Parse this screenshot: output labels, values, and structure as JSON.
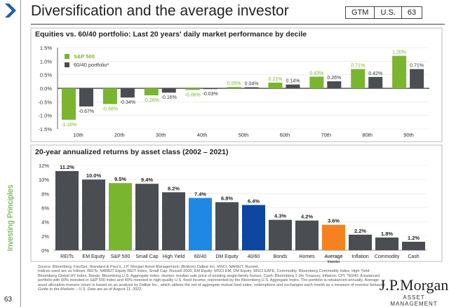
{
  "header": {
    "title": "Diversification and the average investor",
    "tags": [
      "GTM",
      "U.S.",
      "63"
    ]
  },
  "sidebar": {
    "label": "Investing Principles",
    "page": "63",
    "accent": "#1f5fa8"
  },
  "chart_data": [
    {
      "type": "bar",
      "title": "Equities vs. 60/40 portfolio: Last 20 years' daily market performance by decile",
      "categories": [
        "10th",
        "20th",
        "30th",
        "40th",
        "50th",
        "60th",
        "70th",
        "80th",
        "90th"
      ],
      "series": [
        {
          "name": "S&P 500",
          "color": "#7ab52f",
          "values": [
            -1.16,
            -0.58,
            -0.26,
            -0.06,
            0.05,
            0.21,
            0.43,
            0.71,
            1.2
          ],
          "labels": [
            "-1.16%",
            "-0.58%",
            "-0.26%",
            "-0.06%",
            "0.05%",
            "0.21%",
            "0.43%",
            "0.71%",
            "1.20%"
          ]
        },
        {
          "name": "60/40 portfolio*",
          "color": "#4a4d52",
          "values": [
            -0.67,
            -0.34,
            -0.16,
            -0.03,
            0.04,
            0.14,
            0.26,
            0.42,
            0.71
          ],
          "labels": [
            "-0.67%",
            "-0.34%",
            "-0.16%",
            "-0.03%",
            "0.04%",
            "0.14%",
            "0.26%",
            "0.42%",
            "0.71%"
          ]
        }
      ],
      "ylim": [
        -1.5,
        1.5
      ],
      "yticks": [
        "-1.5%",
        "-1.0%",
        "-0.5%",
        "0.0%",
        "0.5%",
        "1.0%",
        "1.5%"
      ],
      "legend": "top-left",
      "grid": true
    },
    {
      "type": "bar",
      "title": "20-year annualized returns by asset class (2002 – 2021)",
      "categories": [
        "REITs",
        "EM Equity",
        "S&P 500",
        "Small Cap",
        "High Yield",
        "60/40",
        "DM Equity",
        "40/60",
        "Bonds",
        "Homes",
        "Average Investor",
        "Inflation",
        "Commodity",
        "Cash"
      ],
      "values": [
        11.2,
        10.0,
        9.5,
        9.4,
        8.2,
        7.4,
        6.8,
        6.4,
        4.3,
        4.2,
        3.6,
        2.2,
        1.8,
        1.2
      ],
      "labels": [
        "11.2%",
        "10.0%",
        "9.5%",
        "9.4%",
        "8.2%",
        "7.4%",
        "6.8%",
        "6.4%",
        "4.3%",
        "4.2%",
        "3.6%",
        "2.2%",
        "1.8%",
        "1.2%"
      ],
      "colors": [
        "#4a4d52",
        "#4a4d52",
        "#7ab52f",
        "#4a4d52",
        "#4a4d52",
        "#1e88e5",
        "#4a4d52",
        "#0d47a1",
        "#4a4d52",
        "#4a4d52",
        "#f5821f",
        "#4a4d52",
        "#4a4d52",
        "#4a4d52"
      ],
      "ylim": [
        0,
        12
      ],
      "yticks": [
        "0%",
        "2%",
        "4%",
        "6%",
        "8%",
        "10%",
        "12%"
      ],
      "grid": true
    }
  ],
  "footer": {
    "source": "Source: Bloomberg, FactSet, Standard & Poor's, J.P. Morgan Asset Management; (Bottom) Dalbar Inc, MSCI, NAREIT, Russell.",
    "indices": "Indices used are as follows: REITs: NAREIT Equity REIT Index, Small Cap: Russell 2000, EM Equity: MSCI EM, DM Equity: MSCI EAFE, Commodity: Bloomberg Commodity Index, High Yield: Bloomberg Global HY Index, Bonds: Bloomberg U.S. Aggregate Index, Homes: median sale price of existing single-family homes, Cash: Bloomberg 1-3m Treasury, Inflation: CPI. *60/40: A balanced portfolio with 60% invested in S&P 500 Index and 40% invested in high-quality U.S. fixed income, represented by the Bloomberg U.S. Aggregate Index. The portfolio is rebalanced annually. Average asset allocation investor return is based on an analysis by Dalbar Inc., which utilizes the net of aggregate mutual fund sales, redemptions and exchanges each month as a measure of investor behavior.",
    "guide": "Guide to the Markets – U.S. Data are as of August 11, 2022.",
    "logo_top": "J.P.Morgan",
    "logo_bottom": "ASSET MANAGEMENT"
  }
}
